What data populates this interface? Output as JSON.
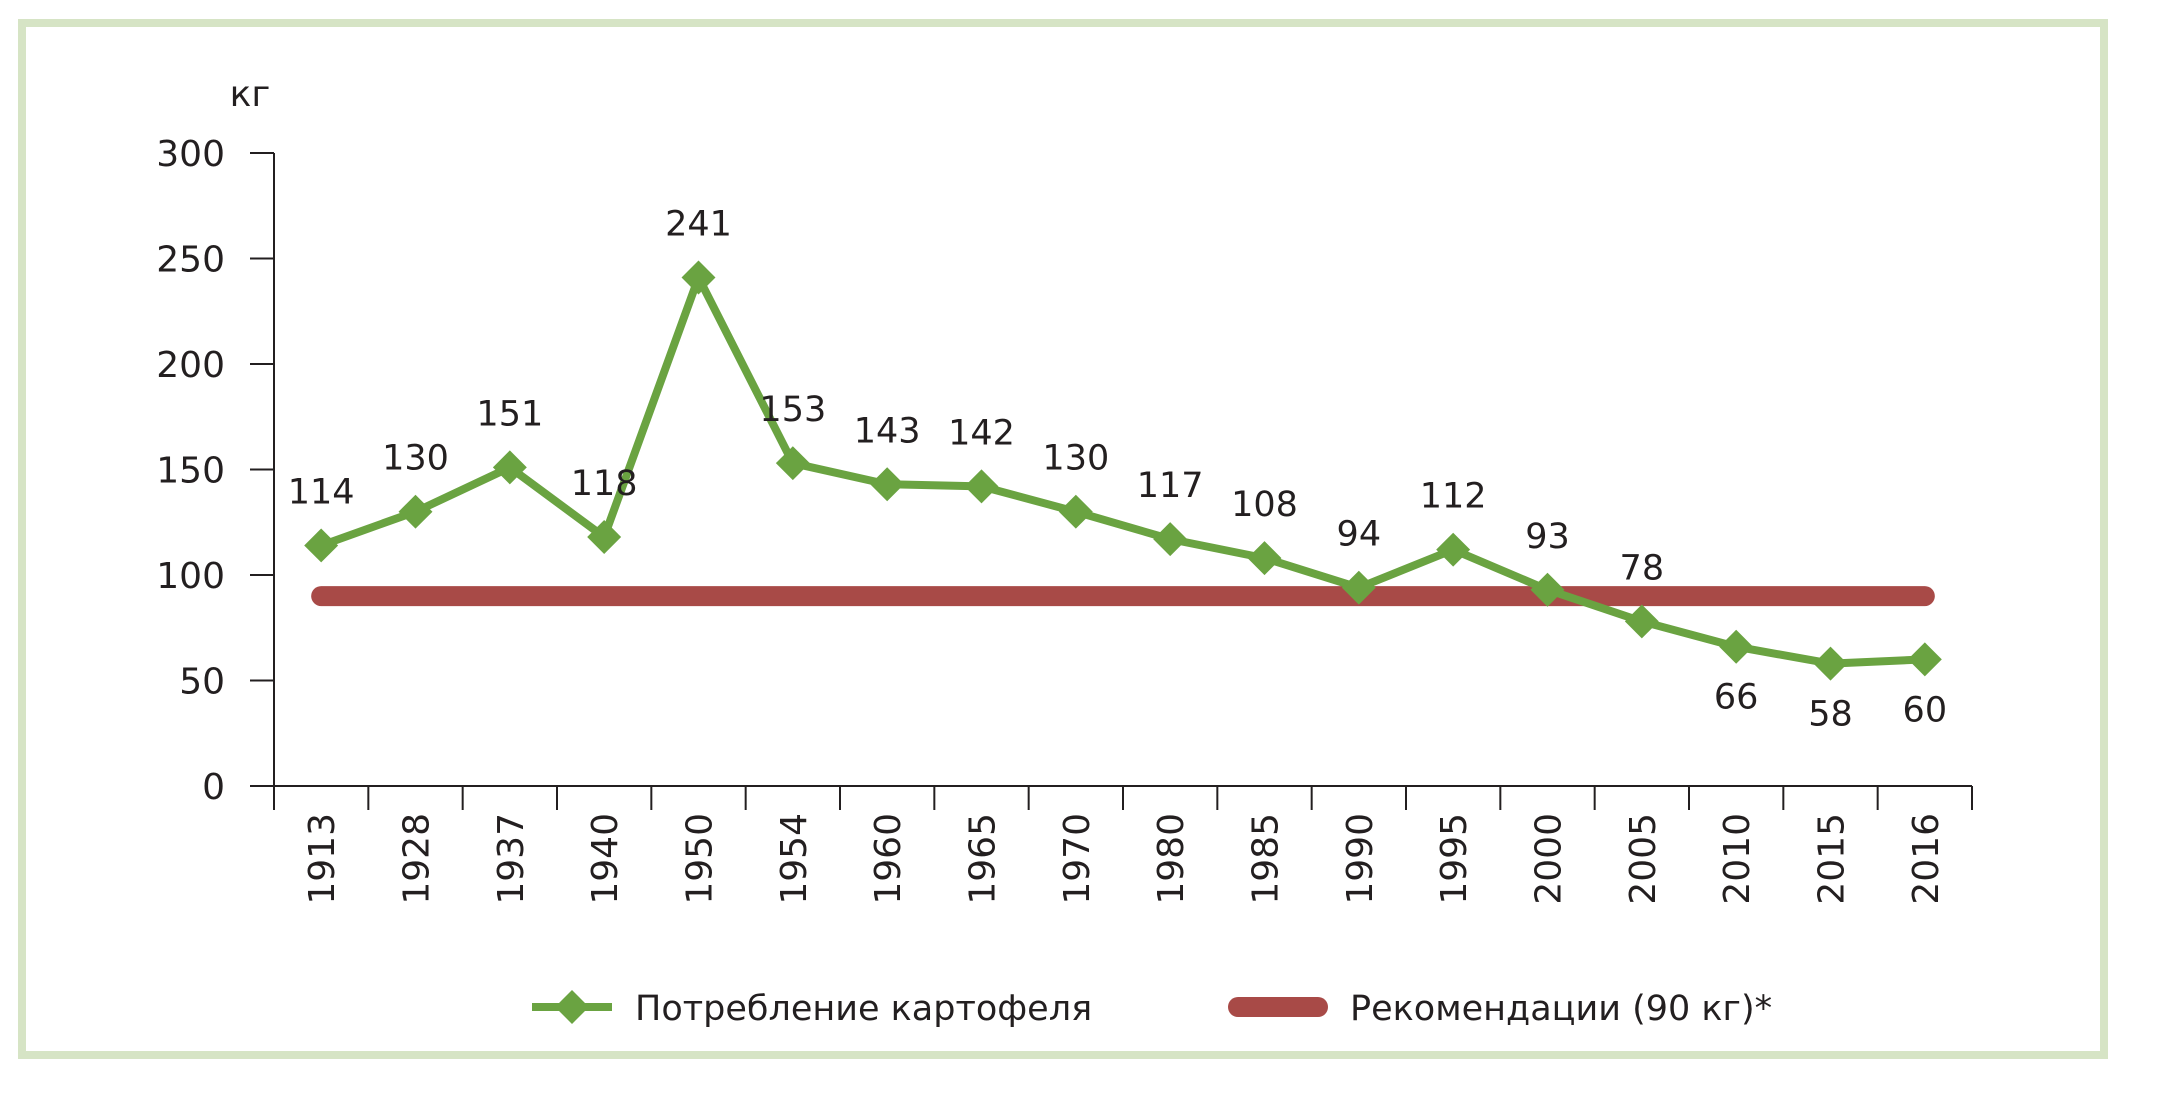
{
  "chart_data": {
    "type": "line",
    "ylabel": "кг",
    "xlabel": "",
    "ylim": [
      0,
      300
    ],
    "yticks": [
      0,
      50,
      100,
      150,
      200,
      250,
      300
    ],
    "categories": [
      "1913",
      "1928",
      "1937",
      "1940",
      "1950",
      "1954",
      "1960",
      "1965",
      "1970",
      "1980",
      "1985",
      "1990",
      "1995",
      "2000",
      "2005",
      "2010",
      "2015",
      "2016"
    ],
    "series": [
      {
        "name": "Потребление картофеля",
        "color": "#6aa341",
        "marker": "diamond",
        "values": [
          114,
          130,
          151,
          118,
          241,
          153,
          143,
          142,
          130,
          117,
          108,
          94,
          112,
          93,
          78,
          66,
          58,
          60
        ],
        "labels_below": [
          false,
          false,
          false,
          false,
          false,
          false,
          false,
          false,
          false,
          false,
          false,
          false,
          false,
          false,
          false,
          true,
          true,
          true
        ]
      },
      {
        "name": "Рекомендации (90 кг)*",
        "color": "#a84a47",
        "constant": 90
      }
    ],
    "legend": "bottom",
    "grid": false
  }
}
